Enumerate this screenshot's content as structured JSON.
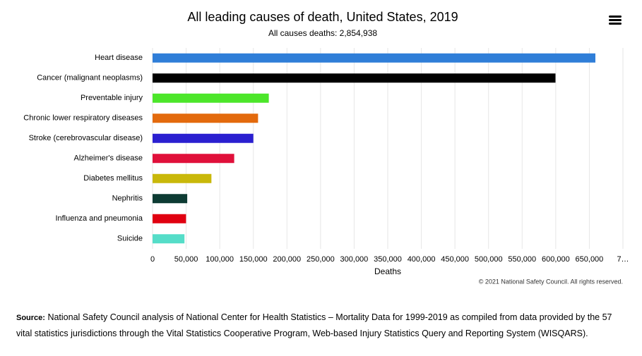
{
  "chart_data": {
    "type": "barh",
    "title": "All leading causes of death, United States, 2019",
    "subtitle": "All causes deaths: 2,854,938",
    "x_label": "Deaths",
    "credit": "© 2021 National Safety Council. All rights reserved.",
    "categories": [
      "Heart disease",
      "Cancer (malignant neoplasms)",
      "Preventable injury",
      "Chronic lower respiratory diseases",
      "Stroke (cerebrovascular disease)",
      "Alzheimer's disease",
      "Diabetes mellitus",
      "Nephritis",
      "Influenza and pneumonia",
      "Suicide"
    ],
    "values": [
      659000,
      599600,
      173000,
      157000,
      150000,
      121500,
      87600,
      51600,
      49800,
      47500
    ],
    "colors": [
      "#2f7ed8",
      "#000000",
      "#4ce62a",
      "#e36a0d",
      "#2a1fd0",
      "#e0103a",
      "#c9b80a",
      "#0d3b33",
      "#e00010",
      "#55ddc8"
    ],
    "xlim": [
      0,
      700000
    ],
    "xticks": [
      0,
      {
        "value": 50000,
        "label": "50,000"
      },
      {
        "value": 100000,
        "label": "100,000"
      },
      {
        "value": 150000,
        "label": "150,000"
      },
      {
        "value": 200000,
        "label": "200,000"
      },
      {
        "value": 250000,
        "label": "250,000"
      },
      {
        "value": 300000,
        "label": "300,000"
      },
      {
        "value": 350000,
        "label": "350,000"
      },
      {
        "value": 400000,
        "label": "400,000"
      },
      {
        "value": 450000,
        "label": "450,000"
      },
      {
        "value": 500000,
        "label": "500,000"
      },
      {
        "value": 550000,
        "label": "550,000"
      },
      {
        "value": 600000,
        "label": "600,000"
      },
      {
        "value": 650000,
        "label": "650,000"
      },
      {
        "value": 700000,
        "label": "7…"
      }
    ],
    "grid": true,
    "source": {
      "label": "Source:",
      "text": "National Safety Council analysis of National Center for Health Statistics – Mortality Data for 1999-2019 as compiled from data provided by the 57 vital statistics jurisdictions through the Vital Statistics Cooperative Program, Web-based Injury Statistics Query and Reporting System (WISQARS)."
    }
  }
}
